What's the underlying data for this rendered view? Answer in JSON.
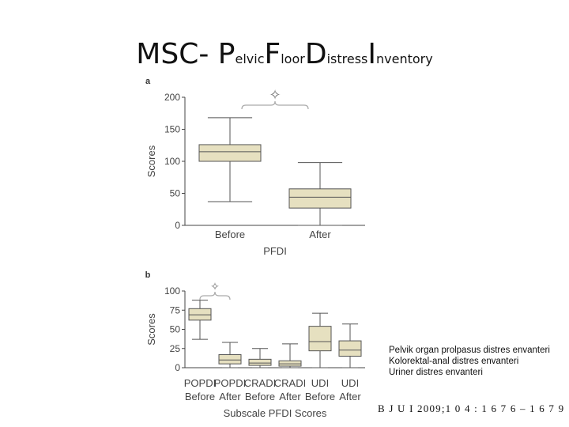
{
  "slide": {
    "title_parts": [
      {
        "text": "MSC- ",
        "size": "big"
      },
      {
        "text": "P",
        "size": "big"
      },
      {
        "text": "elvic",
        "size": "small"
      },
      {
        "text": "F",
        "size": "big"
      },
      {
        "text": "loor",
        "size": "small"
      },
      {
        "text": "D",
        "size": "big"
      },
      {
        "text": "istress",
        "size": "small"
      },
      {
        "text": "I",
        "size": "big"
      },
      {
        "text": "nventory",
        "size": "small"
      }
    ]
  },
  "legend": [
    "Pelvik organ prolpasus distres envanteri",
    "Kolorektal-anal distres envanteri",
    "Uriner distres envanteri"
  ],
  "citation": "B J U I 2009;1 0 4 : 1 6 7 6 – 1 6 7 9",
  "colors": {
    "box_fill": "#e6e0c0",
    "box_stroke": "#555555",
    "axis": "#444444",
    "bracket": "#aaaaaa"
  },
  "chart_data": [
    {
      "panel_label": "a",
      "type": "box",
      "xlabel": "PFDI",
      "ylabel": "Scores",
      "ylim": [
        0,
        200
      ],
      "yticks": [
        0,
        50,
        100,
        150,
        200
      ],
      "categories": [
        [
          "Before"
        ],
        [
          "After"
        ]
      ],
      "boxes": [
        {
          "min": 37,
          "q1": 100,
          "median": 115,
          "q3": 126,
          "max": 168
        },
        {
          "min": 0,
          "q1": 27,
          "median": 44,
          "q3": 57,
          "max": 98
        }
      ],
      "significance": {
        "from": 0,
        "to": 1,
        "symbol": "✧"
      }
    },
    {
      "panel_label": "b",
      "type": "box",
      "xlabel": "Subscale PFDI Scores",
      "ylabel": "Scores",
      "ylim": [
        0,
        100
      ],
      "yticks": [
        0,
        25,
        50,
        75,
        100
      ],
      "categories": [
        [
          "POPDI",
          "Before"
        ],
        [
          "POPDI",
          "After"
        ],
        [
          "CRADI",
          "Before"
        ],
        [
          "CRADI",
          "After"
        ],
        [
          "UDI",
          "Before"
        ],
        [
          "UDI",
          "After"
        ]
      ],
      "boxes": [
        {
          "min": 37,
          "q1": 62,
          "median": 69,
          "q3": 77,
          "max": 88
        },
        {
          "min": 0,
          "q1": 5,
          "median": 10,
          "q3": 17,
          "max": 33
        },
        {
          "min": 0,
          "q1": 3,
          "median": 6,
          "q3": 11,
          "max": 25
        },
        {
          "min": 0,
          "q1": 2,
          "median": 5,
          "q3": 9,
          "max": 31
        },
        {
          "min": 0,
          "q1": 22,
          "median": 34,
          "q3": 54,
          "max": 71
        },
        {
          "min": 0,
          "q1": 15,
          "median": 23,
          "q3": 35,
          "max": 57
        }
      ],
      "significance": {
        "from": 0,
        "to": 1,
        "symbol": "✧"
      }
    }
  ]
}
